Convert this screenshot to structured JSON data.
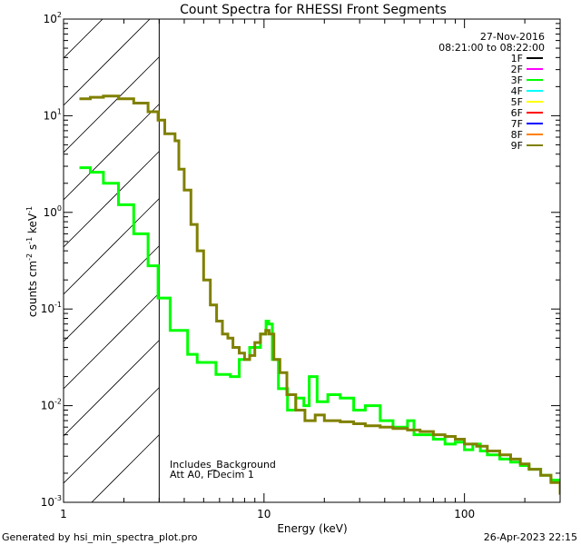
{
  "chart_data": {
    "type": "line",
    "title": "Count Spectra for RHESSI Front Segments",
    "xlabel": "Energy (keV)",
    "ylabel_parts": {
      "main": "counts cm",
      "exp1": "-2",
      "mid": " s",
      "exp2": "-1",
      "unit": " keV",
      "exp3": "-1"
    },
    "xscale": "log",
    "yscale": "log",
    "xlim": [
      1,
      300
    ],
    "ylim": [
      0.001,
      100
    ],
    "x_ticks": [
      {
        "value": 1,
        "label": "1"
      },
      {
        "value": 10,
        "label": "10"
      },
      {
        "value": 100,
        "label": "100"
      }
    ],
    "y_ticks": [
      {
        "value": 0.001,
        "base": "10",
        "exp": "-3"
      },
      {
        "value": 0.01,
        "base": "10",
        "exp": "-2"
      },
      {
        "value": 0.1,
        "base": "10",
        "exp": "-1"
      },
      {
        "value": 1,
        "base": "10",
        "exp": "0"
      },
      {
        "value": 10,
        "base": "10",
        "exp": "1"
      },
      {
        "value": 100,
        "base": "10",
        "exp": "2"
      }
    ],
    "date": "27-Nov-2016",
    "time_range": "08:21:00 to 08:22:00",
    "legend": [
      {
        "name": "1F",
        "color": "#000000"
      },
      {
        "name": "2F",
        "color": "#ff00ff"
      },
      {
        "name": "3F",
        "color": "#00ff00"
      },
      {
        "name": "4F",
        "color": "#00ffff"
      },
      {
        "name": "5F",
        "color": "#ffff00"
      },
      {
        "name": "6F",
        "color": "#ff0000"
      },
      {
        "name": "7F",
        "color": "#0000ff"
      },
      {
        "name": "8F",
        "color": "#ff8000"
      },
      {
        "name": "9F",
        "color": "#808000"
      }
    ],
    "shaded_region": {
      "xmin": 1,
      "xmax": 3
    },
    "annotations": [
      "Includes_Background",
      "Att A0, FDecim 1"
    ],
    "series": [
      {
        "name": "3F",
        "color": "#00ff00",
        "style": "step",
        "x": [
          1.2,
          1.36,
          1.58,
          1.88,
          2.24,
          2.64,
          2.96,
          3.4,
          4.16,
          4.64,
          5.76,
          6.8,
          7.52,
          8.48,
          9.6,
          10.24,
          10.56,
          11.0,
          11.8,
          13.1,
          14.4,
          15.8,
          16.8,
          18.4,
          20.8,
          24.0,
          28.0,
          32.0,
          38.0,
          44.0,
          52.0,
          56.0,
          62.0,
          70.0,
          80.0,
          90.0,
          100.0,
          110.0,
          120.0,
          130.0,
          150.0,
          170.0,
          190.0,
          210.0,
          240.0,
          270.0,
          300.0
        ],
        "y": [
          2.9,
          2.6,
          2.0,
          1.2,
          0.6,
          0.28,
          0.13,
          0.06,
          0.034,
          0.028,
          0.021,
          0.02,
          0.03,
          0.04,
          0.055,
          0.075,
          0.07,
          0.03,
          0.015,
          0.009,
          0.012,
          0.01,
          0.02,
          0.011,
          0.013,
          0.012,
          0.009,
          0.01,
          0.007,
          0.006,
          0.007,
          0.005,
          0.005,
          0.0045,
          0.004,
          0.0042,
          0.0035,
          0.004,
          0.0034,
          0.0031,
          0.0028,
          0.0026,
          0.0024,
          0.0022,
          0.0019,
          0.0017,
          0.0013
        ]
      },
      {
        "name": "9F",
        "color": "#808000",
        "style": "step",
        "x": [
          1.2,
          1.36,
          1.58,
          1.88,
          2.24,
          2.64,
          2.96,
          3.2,
          3.6,
          3.76,
          4.0,
          4.32,
          4.64,
          5.0,
          5.4,
          5.8,
          6.2,
          6.6,
          7.0,
          7.52,
          8.0,
          8.48,
          9.0,
          9.6,
          10.2,
          10.6,
          11.2,
          12.0,
          13.0,
          14.4,
          16.0,
          18.0,
          20.0,
          24.0,
          28.0,
          32.0,
          38.0,
          44.0,
          52.0,
          60.0,
          70.0,
          80.0,
          90.0,
          100.0,
          115.0,
          130.0,
          150.0,
          170.0,
          190.0,
          210.0,
          240.0,
          270.0,
          300.0
        ],
        "y": [
          15.0,
          15.5,
          16.0,
          15.0,
          13.5,
          11.0,
          9.0,
          6.5,
          5.5,
          2.8,
          1.7,
          0.75,
          0.4,
          0.2,
          0.11,
          0.075,
          0.055,
          0.05,
          0.04,
          0.035,
          0.03,
          0.033,
          0.045,
          0.055,
          0.06,
          0.055,
          0.03,
          0.022,
          0.013,
          0.009,
          0.007,
          0.008,
          0.007,
          0.0068,
          0.0065,
          0.0062,
          0.006,
          0.0058,
          0.0056,
          0.0054,
          0.005,
          0.0048,
          0.0045,
          0.004,
          0.0038,
          0.0034,
          0.0031,
          0.0028,
          0.0025,
          0.0022,
          0.0019,
          0.0016,
          0.0012
        ]
      }
    ]
  },
  "footer": {
    "left": "Generated by hsi_min_spectra_plot.pro",
    "right": "26-Apr-2023 22:15"
  }
}
